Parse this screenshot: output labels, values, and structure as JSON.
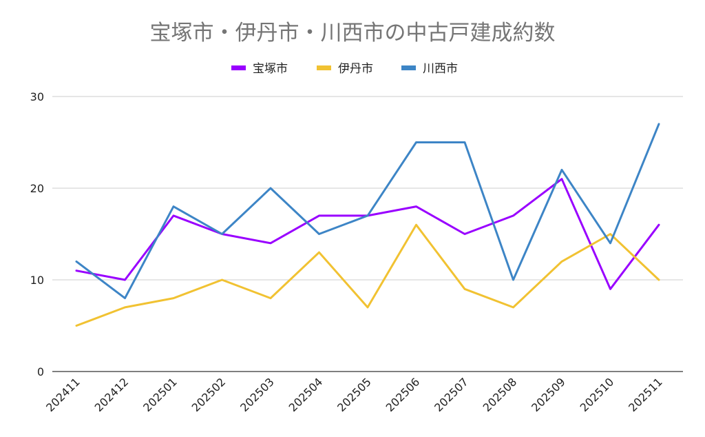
{
  "chart_data": {
    "type": "line",
    "title": "宝塚市・伊丹市・川西市の中古戸建成約数",
    "xlabel": "",
    "ylabel": "",
    "categories": [
      "202411",
      "202412",
      "202501",
      "202502",
      "202503",
      "202504",
      "202505",
      "202506",
      "202507",
      "202508",
      "202509",
      "202510",
      "202511"
    ],
    "ylim": [
      0,
      30
    ],
    "yticks": [
      0,
      10,
      20,
      30
    ],
    "grid": true,
    "legend_position": "top-center",
    "series": [
      {
        "name": "宝塚市",
        "color": "#9900ff",
        "values": [
          11,
          10,
          17,
          15,
          14,
          17,
          17,
          18,
          15,
          17,
          21,
          9,
          16
        ]
      },
      {
        "name": "伊丹市",
        "color": "#f1c232",
        "values": [
          5,
          7,
          8,
          10,
          8,
          13,
          7,
          16,
          9,
          7,
          12,
          15,
          10
        ]
      },
      {
        "name": "川西市",
        "color": "#3d85c6",
        "values": [
          12,
          8,
          18,
          15,
          20,
          15,
          17,
          25,
          25,
          10,
          22,
          14,
          27
        ]
      }
    ]
  }
}
